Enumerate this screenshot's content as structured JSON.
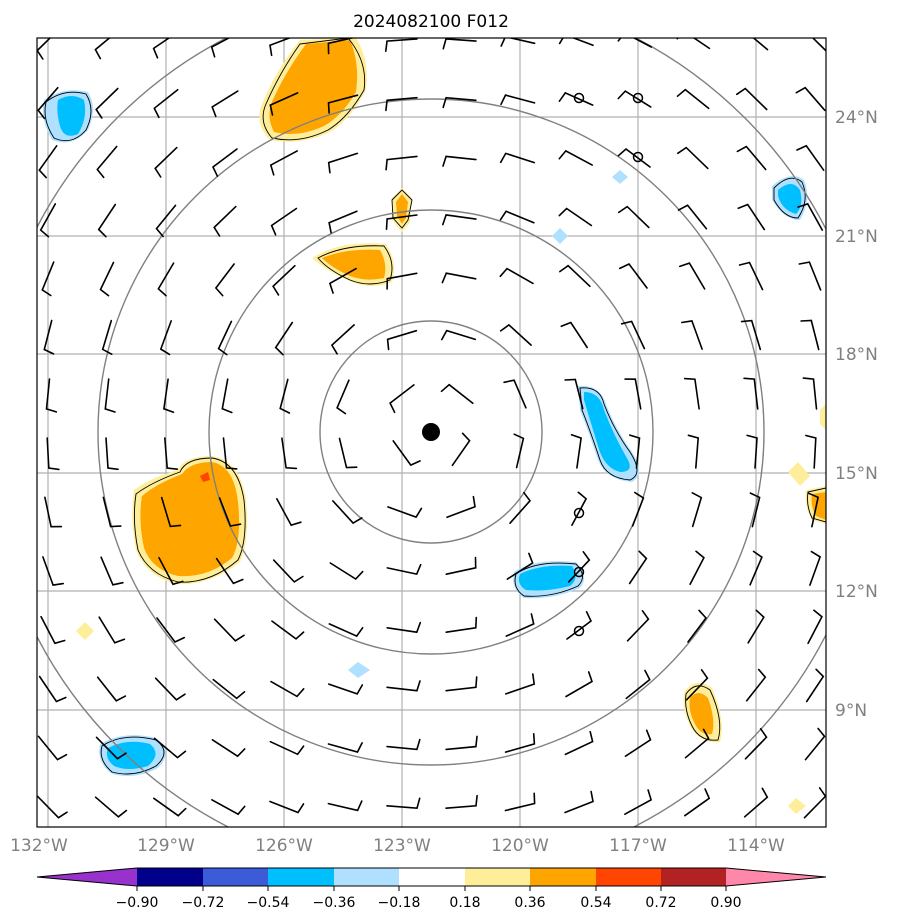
{
  "map": {
    "title": "2024082100 F012",
    "lon_labels": [
      "132°W",
      "129°W",
      "126°W",
      "123°W",
      "120°W",
      "117°W",
      "114°W"
    ],
    "lat_labels": [
      "24°N",
      "21°N",
      "18°N",
      "15°N",
      "12°N",
      "9°N"
    ],
    "center_marker": "storm-center-dot",
    "range_rings": 4,
    "gridline_color": "#b0b0b0",
    "ring_color": "#808080"
  },
  "colorbar": {
    "labels": [
      "−0.90",
      "−0.72",
      "−0.54",
      "−0.36",
      "−0.18",
      "0.18",
      "0.36",
      "0.54",
      "0.72",
      "0.90"
    ],
    "colors": [
      "#9932cc",
      "#00008b",
      "#3b5bd9",
      "#00bfff",
      "#b0e0ff",
      "#ffffff",
      "#ffee99",
      "#ffa500",
      "#ff4500",
      "#b22222",
      "#ff88aa"
    ]
  }
}
